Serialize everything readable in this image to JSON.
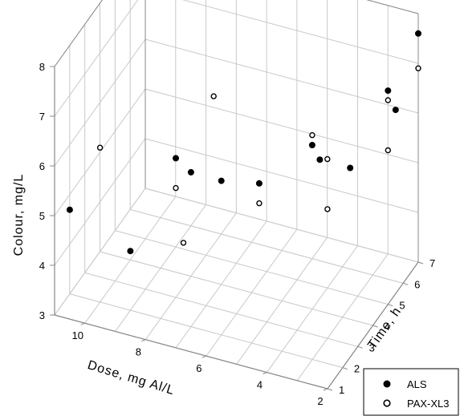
{
  "chart_data": {
    "type": "scatter",
    "title": "",
    "xlabel": "Dose, mg Al/L",
    "ylabel": "Time, h",
    "zlabel": "Colour, mg/L",
    "xlim": [
      2,
      11
    ],
    "ylim": [
      1,
      7
    ],
    "zlim": [
      3,
      8
    ],
    "x_ticks": [
      "2",
      "4",
      "6",
      "8",
      "10"
    ],
    "y_ticks": [
      "1",
      "2",
      "3",
      "4",
      "5",
      "6",
      "7"
    ],
    "z_ticks": [
      "3",
      "4",
      "5",
      "6",
      "7",
      "8"
    ],
    "grid": true,
    "legend_position": "bottom-right",
    "series": [
      {
        "name": "ALS",
        "marker": "filled-circle",
        "color": "#000000",
        "points": [
          {
            "x": 10.5,
            "y": 1.0,
            "z": 5.2
          },
          {
            "x": 8.5,
            "y": 1.0,
            "z": 4.7
          },
          {
            "x": 8.0,
            "y": 3.0,
            "z": 5.8
          },
          {
            "x": 7.5,
            "y": 3.0,
            "z": 5.6
          },
          {
            "x": 6.0,
            "y": 2.0,
            "z": 6.1
          },
          {
            "x": 5.0,
            "y": 2.5,
            "z": 6.0
          },
          {
            "x": 4.0,
            "y": 4.0,
            "z": 6.3
          },
          {
            "x": 3.5,
            "y": 3.5,
            "z": 6.3
          },
          {
            "x": 2.5,
            "y": 3.5,
            "z": 6.3
          },
          {
            "x": 2.0,
            "y": 5.5,
            "z": 6.7
          },
          {
            "x": 2.0,
            "y": 5.0,
            "z": 7.3
          },
          {
            "x": 2.0,
            "y": 7.0,
            "z": 7.6
          }
        ]
      },
      {
        "name": "PAX-XL3",
        "marker": "open-circle",
        "color": "#000000",
        "points": [
          {
            "x": 10.5,
            "y": 3.0,
            "z": 5.6
          },
          {
            "x": 8.0,
            "y": 3.0,
            "z": 5.2
          },
          {
            "x": 7.0,
            "y": 1.5,
            "z": 4.9
          },
          {
            "x": 7.0,
            "y": 3.5,
            "z": 7.0
          },
          {
            "x": 5.0,
            "y": 2.5,
            "z": 5.6
          },
          {
            "x": 4.0,
            "y": 4.0,
            "z": 6.5
          },
          {
            "x": 3.5,
            "y": 4.0,
            "z": 6.1
          },
          {
            "x": 3.0,
            "y": 3.0,
            "z": 5.6
          },
          {
            "x": 2.5,
            "y": 6.0,
            "z": 6.6
          },
          {
            "x": 2.0,
            "y": 5.0,
            "z": 6.1
          },
          {
            "x": 2.0,
            "y": 7.0,
            "z": 6.9
          }
        ]
      }
    ]
  }
}
